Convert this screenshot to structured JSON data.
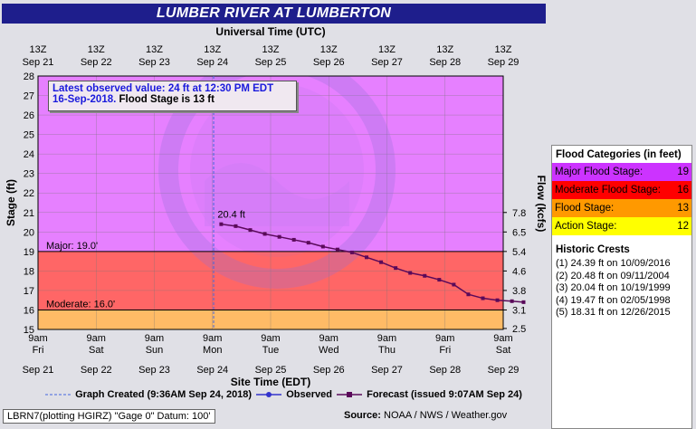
{
  "title": "LUMBER RIVER AT LUMBERTON",
  "top_axis_title": "Universal Time (UTC)",
  "bottom_axis_title": "Site Time (EDT)",
  "y_left_title": "Stage (ft)",
  "y_right_title": "Flow (kcfs)",
  "observed_box": {
    "line1": "Latest observed value: 24 ft at 12:30 PM EDT",
    "line2_date": "16-Sep-2018.",
    "line2_flood": "Flood Stage is 13 ft"
  },
  "stage_lines": [
    {
      "label": "Major: 19.0'",
      "value": 19
    },
    {
      "label": "Moderate: 16.0'",
      "value": 16
    }
  ],
  "peak_label": "20.4 ft",
  "legend": {
    "categories_header": "Flood Categories (in feet)",
    "categories": [
      {
        "label": "Major Flood Stage:",
        "value": "19",
        "color": "#cc33ff"
      },
      {
        "label": "Moderate Flood Stage:",
        "value": "16",
        "color": "#ff0000"
      },
      {
        "label": "Flood Stage:",
        "value": "13",
        "color": "#ff9900"
      },
      {
        "label": "Action Stage:",
        "value": "12",
        "color": "#ffff00"
      }
    ],
    "crests_header": "Historic Crests",
    "crests": [
      "(1) 24.39 ft on 10/09/2016",
      "(2) 20.48 ft on 09/11/2004",
      "(3) 20.04 ft on 10/19/1999",
      "(4) 19.47 ft on 02/05/1998",
      "(5) 18.31 ft on 12/26/2015"
    ]
  },
  "series_legend": {
    "created": "Graph Created (9:36AM Sep 24, 2018)",
    "observed": "Observed",
    "forecast": "Forecast (issued 9:07AM Sep 24)"
  },
  "footer_left": "LBRN7(plotting HGIRZ) \"Gage 0\" Datum: 100'",
  "footer_source_label": "Source:",
  "footer_source": "NOAA / NWS / Weather.gov",
  "colors": {
    "major_zone": "#e680ff",
    "moderate_zone": "#ff6666",
    "action_zone": "#ffbb66",
    "forecast_line": "#5a0a5a",
    "title_bg": "#1e1e8c"
  },
  "chart_data": {
    "type": "line",
    "x_unit": "EDT",
    "ylim": [
      15,
      28
    ],
    "y_ticks": [
      15,
      16,
      17,
      18,
      19,
      20,
      21,
      22,
      23,
      24,
      25,
      26,
      27,
      28
    ],
    "flow_ticks": [
      {
        "stage": 15.05,
        "label": "2.5"
      },
      {
        "stage": 16.0,
        "label": "3.1"
      },
      {
        "stage": 17.0,
        "label": "3.8"
      },
      {
        "stage": 18.0,
        "label": "4.6"
      },
      {
        "stage": 19.0,
        "label": "5.4"
      },
      {
        "stage": 20.0,
        "label": "6.5"
      },
      {
        "stage": 21.0,
        "label": "7.8"
      }
    ],
    "top_ticks": [
      {
        "time": "13Z",
        "date": "Sep 21"
      },
      {
        "time": "13Z",
        "date": "Sep 22"
      },
      {
        "time": "13Z",
        "date": "Sep 23"
      },
      {
        "time": "13Z",
        "date": "Sep 24"
      },
      {
        "time": "13Z",
        "date": "Sep 25"
      },
      {
        "time": "13Z",
        "date": "Sep 26"
      },
      {
        "time": "13Z",
        "date": "Sep 27"
      },
      {
        "time": "13Z",
        "date": "Sep 28"
      },
      {
        "time": "13Z",
        "date": "Sep 29"
      }
    ],
    "bottom_ticks": [
      {
        "time": "9am",
        "day": "Fri",
        "date": "Sep 21"
      },
      {
        "time": "9am",
        "day": "Sat",
        "date": "Sep 22"
      },
      {
        "time": "9am",
        "day": "Sun",
        "date": "Sep 23"
      },
      {
        "time": "9am",
        "day": "Mon",
        "date": "Sep 24"
      },
      {
        "time": "9am",
        "day": "Tue",
        "date": "Sep 25"
      },
      {
        "time": "9am",
        "day": "Wed",
        "date": "Sep 26"
      },
      {
        "time": "9am",
        "day": "Thu",
        "date": "Sep 27"
      },
      {
        "time": "9am",
        "day": "Fri",
        "date": "Sep 28"
      },
      {
        "time": "9am",
        "day": "Sat",
        "date": "Sep 29"
      }
    ],
    "graph_created_day": 3.02,
    "series": [
      {
        "name": "Forecast",
        "points": [
          {
            "day": 3.15,
            "value": 20.4
          },
          {
            "day": 3.4,
            "value": 20.3
          },
          {
            "day": 3.65,
            "value": 20.1
          },
          {
            "day": 3.9,
            "value": 19.9
          },
          {
            "day": 4.15,
            "value": 19.75
          },
          {
            "day": 4.4,
            "value": 19.6
          },
          {
            "day": 4.65,
            "value": 19.45
          },
          {
            "day": 4.9,
            "value": 19.25
          },
          {
            "day": 5.15,
            "value": 19.1
          },
          {
            "day": 5.4,
            "value": 18.95
          },
          {
            "day": 5.65,
            "value": 18.7
          },
          {
            "day": 5.9,
            "value": 18.45
          },
          {
            "day": 6.15,
            "value": 18.15
          },
          {
            "day": 6.4,
            "value": 17.9
          },
          {
            "day": 6.65,
            "value": 17.75
          },
          {
            "day": 6.9,
            "value": 17.55
          },
          {
            "day": 7.15,
            "value": 17.3
          },
          {
            "day": 7.4,
            "value": 16.8
          },
          {
            "day": 7.65,
            "value": 16.6
          },
          {
            "day": 7.9,
            "value": 16.5
          },
          {
            "day": 8.15,
            "value": 16.45
          },
          {
            "day": 8.35,
            "value": 16.4
          }
        ]
      }
    ]
  }
}
